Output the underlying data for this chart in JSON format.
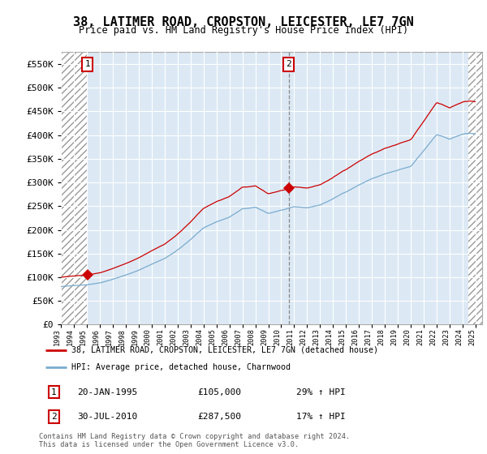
{
  "title": "38, LATIMER ROAD, CROPSTON, LEICESTER, LE7 7GN",
  "subtitle": "Price paid vs. HM Land Registry's House Price Index (HPI)",
  "xlim_start": 1993.0,
  "xlim_end": 2025.5,
  "ylim_min": 0,
  "ylim_max": 575000,
  "yticks": [
    0,
    50000,
    100000,
    150000,
    200000,
    250000,
    300000,
    350000,
    400000,
    450000,
    500000,
    550000
  ],
  "ytick_labels": [
    "£0",
    "£50K",
    "£100K",
    "£150K",
    "£200K",
    "£250K",
    "£300K",
    "£350K",
    "£400K",
    "£450K",
    "£500K",
    "£550K"
  ],
  "sale1_x": 1995.05,
  "sale1_y": 105000,
  "sale2_x": 2010.58,
  "sale2_y": 287500,
  "red_line_color": "#cc0000",
  "blue_line_color": "#7aabcf",
  "background_plot": "#dce9f5",
  "grid_color": "#ffffff",
  "hatch_region_right_start": 2024.42,
  "legend_line1": "38, LATIMER ROAD, CROPSTON, LEICESTER, LE7 7GN (detached house)",
  "legend_line2": "HPI: Average price, detached house, Charnwood",
  "note1_date": "20-JAN-1995",
  "note1_price": "£105,000",
  "note1_hpi": "29% ↑ HPI",
  "note2_date": "30-JUL-2010",
  "note2_price": "£287,500",
  "note2_hpi": "17% ↑ HPI",
  "copyright": "Contains HM Land Registry data © Crown copyright and database right 2024.\nThis data is licensed under the Open Government Licence v3.0."
}
